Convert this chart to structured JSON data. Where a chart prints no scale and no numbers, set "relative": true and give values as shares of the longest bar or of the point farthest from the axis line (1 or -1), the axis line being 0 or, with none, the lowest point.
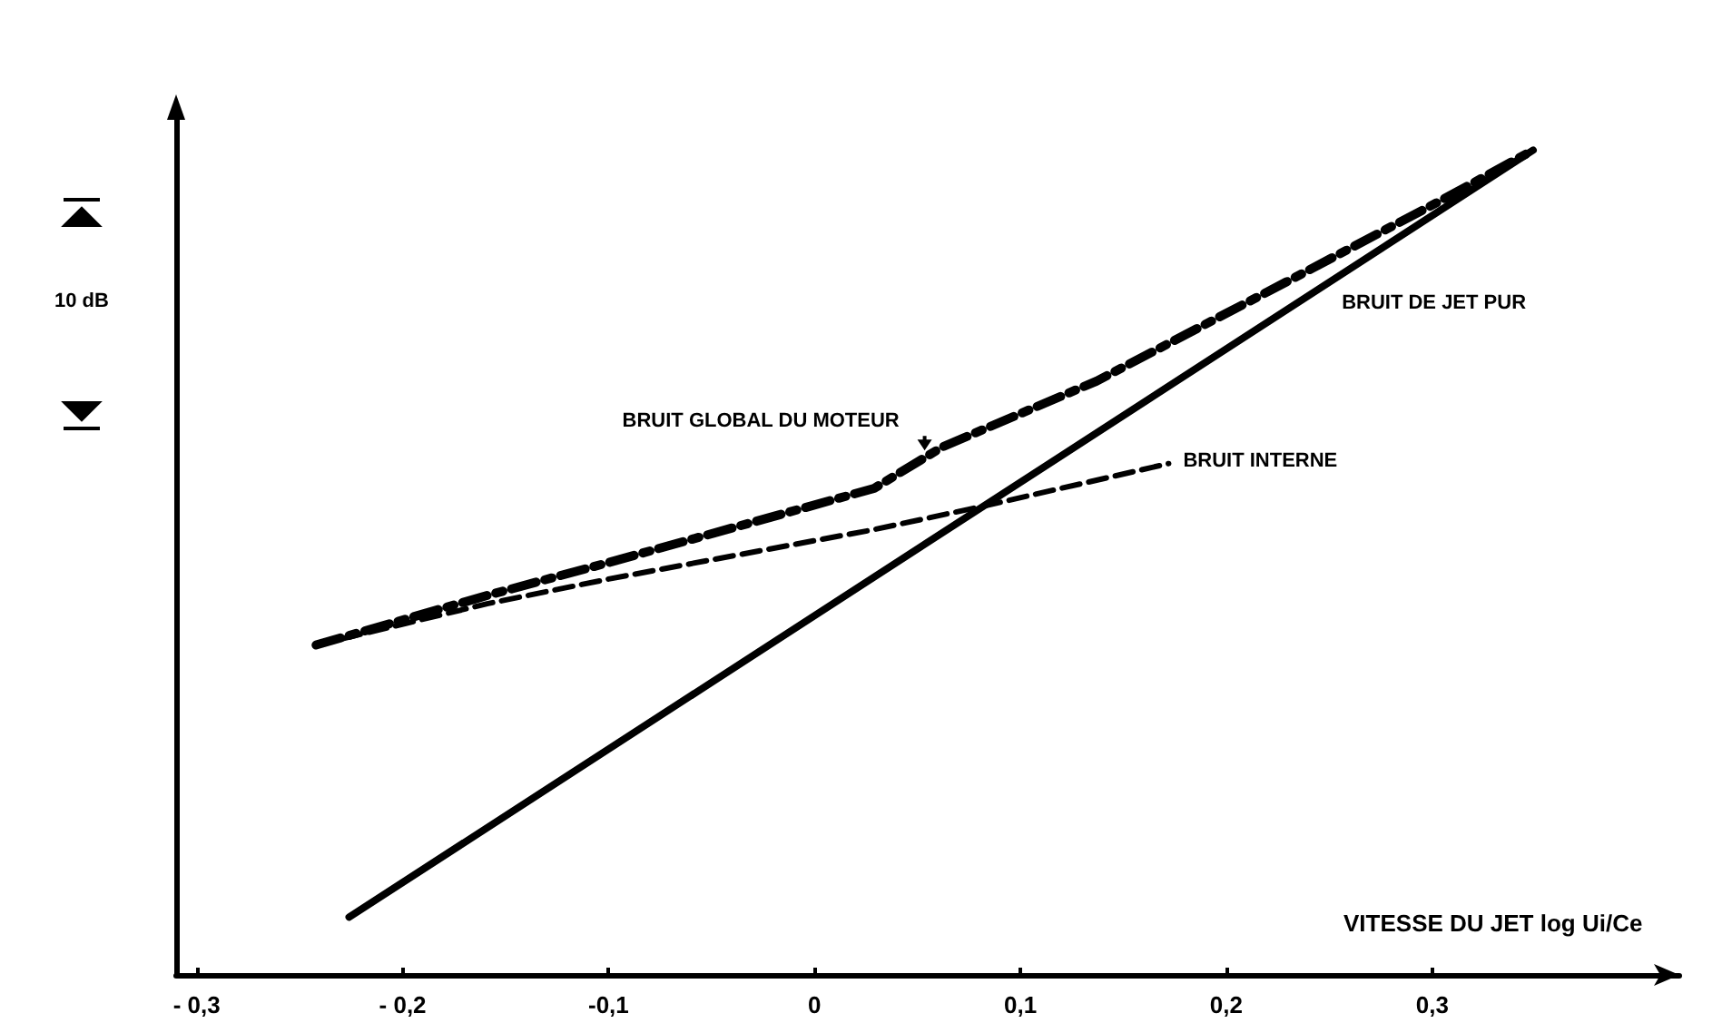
{
  "chart_data": {
    "type": "line",
    "relative": true,
    "xlabel": "VITESSE DU JET  log Ui/Ce",
    "ylabel": "10 dB",
    "xlim": [
      -0.31,
      0.42
    ],
    "xticks": [
      {
        "value": -0.3,
        "label": "- 0,3"
      },
      {
        "value": -0.2,
        "label": "- 0,2"
      },
      {
        "value": -0.1,
        "label": "-0,1"
      },
      0,
      {
        "value": 0.1,
        "label": "0,1"
      },
      {
        "value": 0.2,
        "label": "0,2"
      },
      {
        "value": 0.3,
        "label": "0,3"
      }
    ],
    "grid": false,
    "legend": false,
    "marker": "none",
    "series": [
      {
        "name": "BRUIT GLOBAL DU MOTEUR",
        "color": "#000000",
        "line_style": "dashed",
        "x": [
          -0.242,
          -0.159,
          -0.1,
          0.029,
          0.062,
          0.137,
          0.229,
          0.305,
          0.349
        ],
        "values": [
          0.4,
          0.46,
          0.5,
          0.59,
          0.64,
          0.72,
          0.84,
          0.94,
          1.0
        ]
      },
      {
        "name": "BRUIT INTERNE",
        "color": "#000000",
        "line_style": "dashed",
        "x": [
          -0.242,
          -0.159,
          -0.1,
          0.029,
          0.085,
          0.172
        ],
        "values": [
          0.4,
          0.45,
          0.48,
          0.54,
          0.57,
          0.62
        ]
      },
      {
        "name": "BRUIT DE JET PUR",
        "color": "#000000",
        "line_style": "solid",
        "x": [
          -0.226,
          0.349
        ],
        "values": [
          0.07,
          1.0
        ]
      }
    ]
  }
}
